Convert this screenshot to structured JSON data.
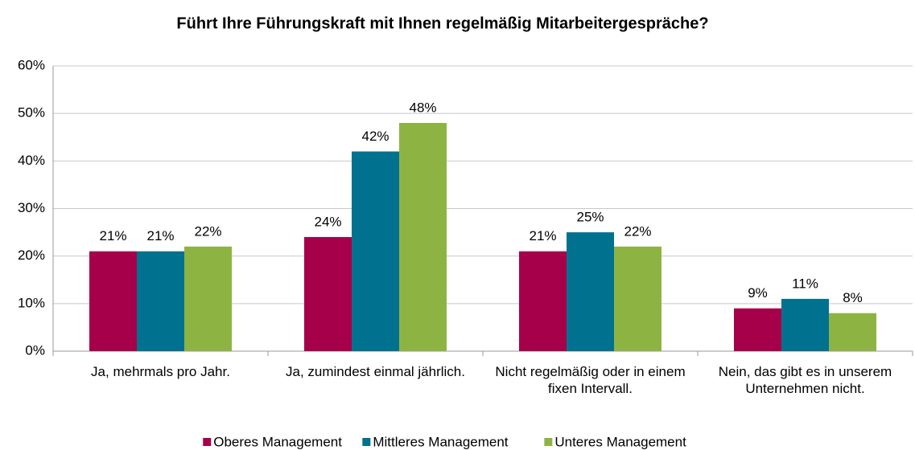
{
  "chart_data": {
    "type": "bar",
    "title": "Führt Ihre Führungskraft mit Ihnen regelmäßig Mitarbeitergespräche?",
    "categories": [
      "Ja, mehrmals pro Jahr.",
      "Ja, zumindest einmal jährlich.",
      "Nicht regelmäßig oder in einem fixen Intervall.",
      "Nein, das gibt es in unserem Unternehmen nicht."
    ],
    "series": [
      {
        "name": "Oberes Management",
        "color": "#a6004a",
        "values": [
          21,
          24,
          21,
          9
        ],
        "value_labels": [
          "21%",
          "24%",
          "21%",
          "9%"
        ]
      },
      {
        "name": "Mittleres Management",
        "color": "#00718f",
        "values": [
          21,
          42,
          25,
          11
        ],
        "value_labels": [
          "21%",
          "42%",
          "25%",
          "11%"
        ]
      },
      {
        "name": "Unteres Management",
        "color": "#8db443",
        "values": [
          22,
          48,
          22,
          8
        ],
        "value_labels": [
          "22%",
          "48%",
          "22%",
          "8%"
        ]
      }
    ],
    "ylim": [
      0,
      60
    ],
    "yticks": [
      {
        "value": 0,
        "label": "0%"
      },
      {
        "value": 10,
        "label": "10%"
      },
      {
        "value": 20,
        "label": "20%"
      },
      {
        "value": 30,
        "label": "30%"
      },
      {
        "value": 40,
        "label": "40%"
      },
      {
        "value": 50,
        "label": "50%"
      },
      {
        "value": 60,
        "label": "60%"
      }
    ],
    "grid": true,
    "legend": "bottom"
  }
}
